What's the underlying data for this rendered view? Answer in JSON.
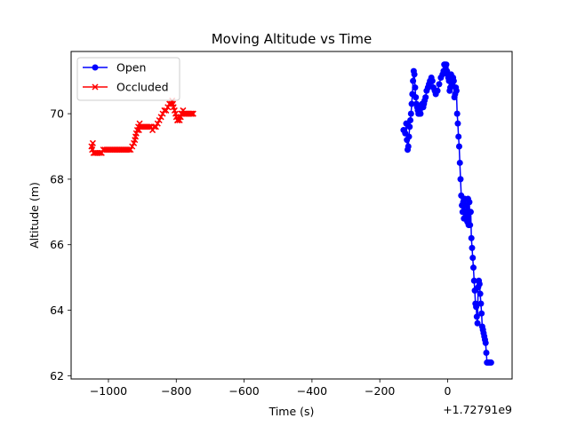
{
  "chart_data": {
    "type": "line",
    "title": "Moving Altitude vs Time",
    "xlabel": "Time (s)",
    "ylabel": "Altitude (m)",
    "x_offset_label": "+1.72791e9",
    "xlim": [
      -1110,
      190
    ],
    "ylim": [
      61.9,
      71.9
    ],
    "xticks": [
      -1000,
      -800,
      -600,
      -400,
      -200,
      0
    ],
    "xtick_labels": [
      "−1000",
      "−800",
      "−600",
      "−400",
      "−200",
      "0"
    ],
    "yticks": [
      62,
      64,
      66,
      68,
      70
    ],
    "ytick_labels": [
      "62",
      "64",
      "66",
      "68",
      "70"
    ],
    "grid": false,
    "legend_position": "upper left",
    "series": [
      {
        "name": "Open",
        "color": "#0000ff",
        "marker": "circle",
        "x": [
          -130,
          -125,
          -122,
          -120,
          -118,
          -116,
          -114,
          -112,
          -110,
          -108,
          -106,
          -104,
          -102,
          -100,
          -98,
          -96,
          -94,
          -92,
          -90,
          -88,
          -86,
          -84,
          -82,
          -80,
          -78,
          -75,
          -72,
          -70,
          -68,
          -65,
          -62,
          -58,
          -55,
          -52,
          -48,
          -45,
          -42,
          -38,
          -35,
          -30,
          -25,
          -20,
          -15,
          -12,
          -10,
          -8,
          -6,
          -4,
          -2,
          0,
          2,
          4,
          6,
          8,
          10,
          12,
          14,
          16,
          18,
          20,
          22,
          24,
          26,
          28,
          30,
          32,
          34,
          36,
          38,
          40,
          42,
          44,
          46,
          48,
          50,
          52,
          54,
          56,
          58,
          60,
          62,
          64,
          66,
          68,
          70,
          72,
          74,
          76,
          78,
          80,
          82,
          84,
          86,
          88,
          90,
          92,
          94,
          96,
          98,
          100,
          102,
          104,
          106,
          108,
          110,
          112,
          114,
          116,
          118,
          120,
          122,
          124,
          126,
          128
        ],
        "y": [
          69.5,
          69.4,
          69.7,
          69.2,
          68.9,
          69.0,
          69.3,
          69.6,
          69.8,
          70.0,
          70.3,
          70.6,
          71.0,
          71.3,
          71.2,
          70.8,
          70.5,
          70.3,
          70.2,
          70.1,
          70.0,
          70.0,
          70.1,
          70.0,
          70.2,
          70.3,
          70.2,
          70.3,
          70.4,
          70.5,
          70.7,
          70.8,
          70.9,
          71.0,
          71.1,
          71.0,
          70.8,
          70.7,
          70.6,
          70.7,
          70.9,
          71.1,
          71.2,
          71.3,
          71.5,
          71.5,
          71.4,
          71.5,
          71.3,
          71.2,
          71.1,
          71.0,
          70.7,
          70.8,
          71.2,
          71.0,
          70.9,
          71.1,
          71.0,
          70.5,
          70.6,
          70.8,
          70.7,
          70.0,
          69.7,
          69.3,
          69.0,
          68.5,
          68.0,
          67.5,
          67.2,
          67.0,
          67.3,
          66.8,
          67.4,
          67.0,
          66.9,
          67.2,
          66.7,
          67.4,
          66.6,
          67.3,
          66.6,
          67.0,
          66.2,
          65.9,
          65.6,
          65.3,
          64.9,
          64.6,
          64.2,
          64.1,
          63.8,
          63.6,
          64.7,
          64.9,
          64.8,
          64.5,
          64.2,
          63.9,
          63.5,
          63.4,
          63.3,
          63.2,
          63.1,
          63.0,
          62.7,
          62.4,
          62.4,
          62.4,
          62.4,
          62.4,
          62.4,
          62.4
        ]
      },
      {
        "name": "Occluded",
        "color": "#ff0000",
        "marker": "x",
        "x": [
          -1050,
          -1048,
          -1046,
          -1044,
          -1040,
          -1035,
          -1030,
          -1025,
          -1020,
          -1015,
          -1010,
          -1005,
          -1000,
          -995,
          -990,
          -985,
          -980,
          -975,
          -970,
          -965,
          -960,
          -955,
          -950,
          -945,
          -940,
          -935,
          -930,
          -925,
          -922,
          -920,
          -918,
          -915,
          -912,
          -910,
          -908,
          -905,
          -900,
          -895,
          -890,
          -885,
          -880,
          -875,
          -870,
          -865,
          -860,
          -855,
          -850,
          -845,
          -840,
          -835,
          -830,
          -825,
          -820,
          -815,
          -812,
          -810,
          -808,
          -805,
          -802,
          -800,
          -797,
          -795,
          -792,
          -790,
          -787,
          -785,
          -782,
          -780,
          -777,
          -775,
          -772,
          -770,
          -767,
          -765,
          -762,
          -760,
          -757,
          -755,
          -752,
          -750
        ],
        "y": [
          69.0,
          68.9,
          69.1,
          68.8,
          68.8,
          68.8,
          68.8,
          68.8,
          68.8,
          68.9,
          68.9,
          68.9,
          68.9,
          68.9,
          68.9,
          68.9,
          68.9,
          68.9,
          68.9,
          68.9,
          68.9,
          68.9,
          68.9,
          68.9,
          68.9,
          68.9,
          69.0,
          69.1,
          69.2,
          69.3,
          69.4,
          69.5,
          69.6,
          69.5,
          69.7,
          69.6,
          69.6,
          69.6,
          69.6,
          69.6,
          69.6,
          69.6,
          69.5,
          69.6,
          69.6,
          69.7,
          69.8,
          69.9,
          70.0,
          70.1,
          70.1,
          70.2,
          70.3,
          70.3,
          70.4,
          70.3,
          70.2,
          70.1,
          70.0,
          69.9,
          69.8,
          69.8,
          69.9,
          69.8,
          69.9,
          70.0,
          70.0,
          70.1,
          70.0,
          70.0,
          70.0,
          70.0,
          70.0,
          70.0,
          70.0,
          70.0,
          70.0,
          70.0,
          70.0,
          70.0
        ]
      }
    ]
  }
}
